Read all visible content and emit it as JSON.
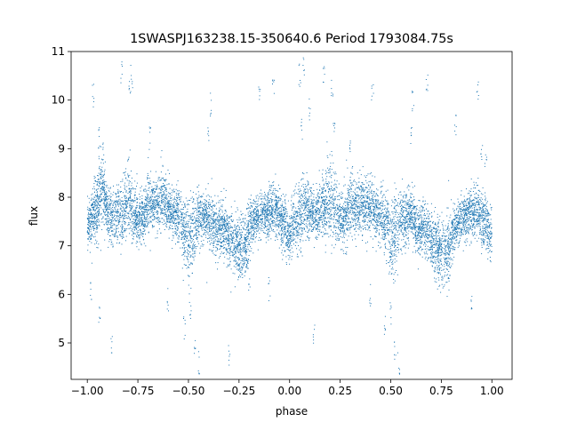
{
  "chart_data": {
    "type": "scatter",
    "title": "1SWASPJ163238.15-350640.6 Period 1793084.75s",
    "xlabel": "phase",
    "ylabel": "flux",
    "xlim": [
      -1.08,
      1.1
    ],
    "ylim": [
      4.25,
      11.0
    ],
    "xticks": [
      -1.0,
      -0.75,
      -0.5,
      -0.25,
      0.0,
      0.25,
      0.5,
      0.75,
      1.0
    ],
    "xtick_labels": [
      "−1.00",
      "−0.75",
      "−0.50",
      "−0.25",
      "0.00",
      "0.25",
      "0.50",
      "0.75",
      "1.00"
    ],
    "yticks": [
      5,
      6,
      7,
      8,
      9,
      10,
      11
    ],
    "ytick_labels": [
      "5",
      "6",
      "7",
      "8",
      "9",
      "10",
      "11"
    ],
    "grid": false,
    "marker_color": "#1f77b4",
    "series": [
      {
        "x": [
          -1.0,
          -0.975,
          -0.95,
          -0.925,
          -0.9,
          -0.875,
          -0.85,
          -0.825,
          -0.8,
          -0.775,
          -0.75,
          -0.725,
          -0.7,
          -0.675,
          -0.65,
          -0.625,
          -0.6,
          -0.575,
          -0.55,
          -0.525,
          -0.5,
          -0.475,
          -0.45,
          -0.425,
          -0.4,
          -0.375,
          -0.35,
          -0.325,
          -0.3,
          -0.275,
          -0.25,
          -0.225,
          -0.2,
          -0.175,
          -0.15,
          -0.125,
          -0.1,
          -0.075,
          -0.05,
          -0.025,
          0.0,
          0.025,
          0.05,
          0.075,
          0.1,
          0.125,
          0.15,
          0.175,
          0.2,
          0.225,
          0.25,
          0.275,
          0.3,
          0.325,
          0.35,
          0.375,
          0.4,
          0.425,
          0.45,
          0.475,
          0.5,
          0.525,
          0.55,
          0.575,
          0.6,
          0.625,
          0.65,
          0.675,
          0.7,
          0.725,
          0.75,
          0.775,
          0.8,
          0.825,
          0.85,
          0.875,
          0.9,
          0.925,
          0.95,
          0.975,
          1.0
        ],
        "y": [
          7.4,
          7.6,
          7.8,
          8.2,
          7.7,
          7.5,
          7.7,
          7.6,
          8.0,
          7.7,
          7.5,
          7.6,
          7.9,
          7.8,
          7.9,
          8.0,
          7.8,
          7.7,
          7.6,
          7.4,
          7.0,
          7.3,
          7.6,
          7.5,
          7.6,
          7.4,
          7.3,
          7.4,
          7.1,
          7.0,
          7.0,
          6.9,
          7.3,
          7.5,
          7.6,
          7.6,
          7.7,
          7.8,
          7.6,
          7.4,
          7.2,
          7.5,
          7.6,
          7.8,
          7.7,
          7.6,
          7.7,
          7.8,
          8.0,
          7.7,
          7.6,
          7.6,
          7.9,
          7.8,
          7.9,
          7.8,
          7.8,
          7.7,
          7.6,
          7.5,
          7.1,
          7.3,
          7.6,
          7.5,
          7.7,
          7.4,
          7.3,
          7.4,
          7.1,
          7.0,
          6.9,
          6.9,
          7.2,
          7.4,
          7.5,
          7.6,
          7.7,
          7.7,
          7.6,
          7.4,
          7.2
        ],
        "spread": [
          0.4,
          0.5,
          0.7,
          0.6,
          0.5,
          0.5,
          0.6,
          0.6,
          0.7,
          0.6,
          0.5,
          0.5,
          0.6,
          0.5,
          0.5,
          0.5,
          0.5,
          0.5,
          0.5,
          0.6,
          0.8,
          0.7,
          0.5,
          0.5,
          0.5,
          0.5,
          0.5,
          0.5,
          0.5,
          0.6,
          0.6,
          0.6,
          0.5,
          0.4,
          0.4,
          0.4,
          0.5,
          0.5,
          0.5,
          0.5,
          0.5,
          0.5,
          0.6,
          0.6,
          0.5,
          0.5,
          0.5,
          0.6,
          0.7,
          0.6,
          0.5,
          0.5,
          0.6,
          0.5,
          0.5,
          0.5,
          0.5,
          0.5,
          0.5,
          0.6,
          0.8,
          0.7,
          0.5,
          0.5,
          0.5,
          0.5,
          0.5,
          0.5,
          0.5,
          0.6,
          0.6,
          0.6,
          0.5,
          0.4,
          0.4,
          0.4,
          0.5,
          0.5,
          0.5,
          0.5,
          0.5
        ]
      }
    ],
    "outliers": [
      {
        "x": -0.83,
        "y": 10.6
      },
      {
        "x": -0.78,
        "y": 10.5
      },
      {
        "x": -0.79,
        "y": 10.2
      },
      {
        "x": -0.94,
        "y": 9.2
      },
      {
        "x": -0.92,
        "y": 8.9
      },
      {
        "x": -0.69,
        "y": 9.2
      },
      {
        "x": -0.52,
        "y": 5.3
      },
      {
        "x": -0.47,
        "y": 4.8
      },
      {
        "x": -0.45,
        "y": 4.6
      },
      {
        "x": -0.49,
        "y": 5.6
      },
      {
        "x": -0.39,
        "y": 9.9
      },
      {
        "x": -0.4,
        "y": 9.2
      },
      {
        "x": -0.94,
        "y": 5.5
      },
      {
        "x": -0.98,
        "y": 6.0
      },
      {
        "x": -0.97,
        "y": 10.1
      },
      {
        "x": 0.05,
        "y": 10.5
      },
      {
        "x": 0.07,
        "y": 10.7
      },
      {
        "x": 0.21,
        "y": 10.3
      },
      {
        "x": 0.22,
        "y": 9.6
      },
      {
        "x": 0.1,
        "y": 9.8
      },
      {
        "x": 0.06,
        "y": 9.4
      },
      {
        "x": 0.47,
        "y": 5.3
      },
      {
        "x": 0.52,
        "y": 4.8
      },
      {
        "x": 0.54,
        "y": 4.6
      },
      {
        "x": 0.5,
        "y": 5.6
      },
      {
        "x": 0.61,
        "y": 10.0
      },
      {
        "x": 0.6,
        "y": 9.2
      },
      {
        "x": 0.3,
        "y": 9.0
      },
      {
        "x": 0.82,
        "y": 9.5
      },
      {
        "x": 0.17,
        "y": 10.5
      },
      {
        "x": -0.15,
        "y": 10.1
      },
      {
        "x": -0.08,
        "y": 10.3
      },
      {
        "x": 0.41,
        "y": 10.2
      },
      {
        "x": 0.93,
        "y": 10.2
      },
      {
        "x": -0.3,
        "y": 4.7
      },
      {
        "x": 0.68,
        "y": 10.4
      },
      {
        "x": -0.2,
        "y": 6.3
      },
      {
        "x": 0.79,
        "y": 6.3
      },
      {
        "x": -0.25,
        "y": 6.5
      },
      {
        "x": 0.74,
        "y": 6.4
      },
      {
        "x": -0.6,
        "y": 5.9
      },
      {
        "x": 0.4,
        "y": 6.0
      },
      {
        "x": 0.9,
        "y": 5.9
      },
      {
        "x": -0.1,
        "y": 6.1
      },
      {
        "x": 0.12,
        "y": 5.2
      },
      {
        "x": -0.88,
        "y": 5.0
      },
      {
        "x": 0.95,
        "y": 9.0
      },
      {
        "x": 0.97,
        "y": 8.7
      }
    ]
  }
}
